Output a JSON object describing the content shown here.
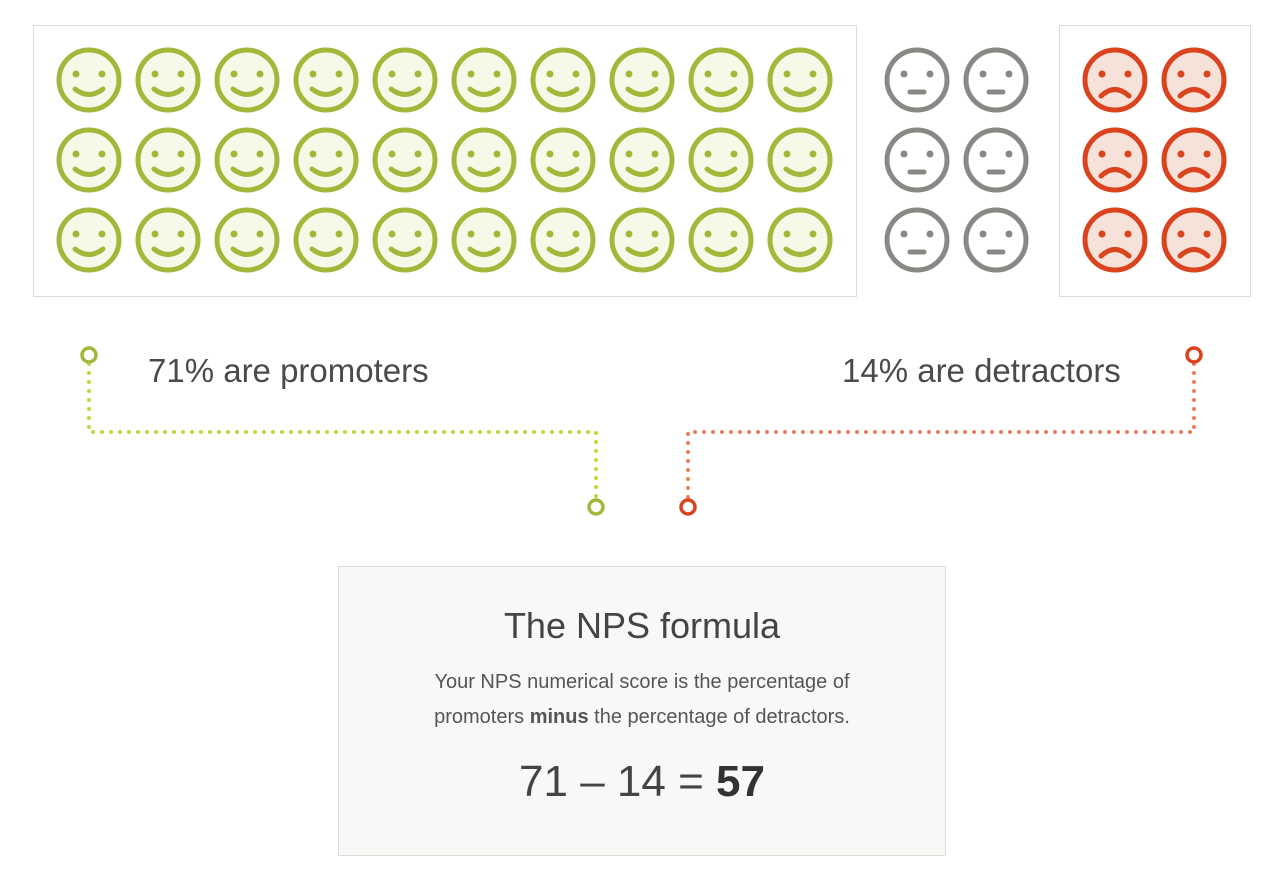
{
  "colors": {
    "promoter": "#a3b83a",
    "promoter_fill": "#f7f9e8",
    "passive": "#888884",
    "passive_fill": "#ffffff",
    "detractor": "#d9431e",
    "detractor_fill": "#f7e2da",
    "promoter_dots": "#c5d63d",
    "detractor_dots": "#e8805f"
  },
  "counts": {
    "promoters": 30,
    "passives": 6,
    "detractors": 6
  },
  "labels": {
    "promoters": "71% are promoters",
    "detractors": "14% are detractors"
  },
  "formula": {
    "title": "The NPS formula",
    "desc_line1": "Your NPS numerical score is the percentage of",
    "desc_pre": "promoters ",
    "desc_bold": "minus",
    "desc_post": " the percentage of detractors.",
    "equation": "71 – 14 = ",
    "result": "57"
  }
}
